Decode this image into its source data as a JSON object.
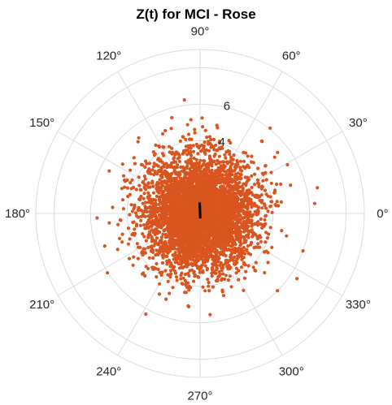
{
  "chart_data": {
    "type": "scatter",
    "projection": "polar",
    "title": "Z(t) for MCI - Rose",
    "angle_ticks": [
      "0°",
      "30°",
      "60°",
      "90°",
      "120°",
      "150°",
      "180°",
      "210°",
      "240°",
      "270°",
      "300°",
      "330°"
    ],
    "angle_tick_values_deg": [
      0,
      30,
      60,
      90,
      120,
      150,
      180,
      210,
      240,
      270,
      300,
      330
    ],
    "radial_ticks": [
      4,
      6
    ],
    "radial_tick_labels": [
      "4",
      "6"
    ],
    "rlim": [
      0,
      9
    ],
    "grid_rings": [
      2,
      4,
      6,
      8,
      9
    ],
    "grid": true,
    "point_color": "#d9541e",
    "mean_vector_color": "#000000",
    "series": [
      {
        "points": [
          {
            "theta_deg": 5,
            "r": 6.3
          },
          {
            "theta_deg": 340,
            "r": 6.0
          },
          {
            "theta_deg": 326,
            "r": 6.4
          },
          {
            "theta_deg": 315,
            "r": 6.0
          },
          {
            "theta_deg": 30,
            "r": 4.5
          },
          {
            "theta_deg": 20,
            "r": 4.7
          },
          {
            "theta_deg": 176,
            "r": 4.8
          },
          {
            "theta_deg": 186,
            "r": 5.0
          },
          {
            "theta_deg": 170,
            "r": 4.3
          },
          {
            "theta_deg": 195,
            "r": 4.4
          },
          {
            "theta_deg": 85,
            "r": 4.2
          },
          {
            "theta_deg": 75,
            "r": 4.1
          },
          {
            "theta_deg": 260,
            "r": 4.4
          },
          {
            "theta_deg": 280,
            "r": 4.1
          },
          {
            "theta_deg": 230,
            "r": 4.0
          },
          {
            "theta_deg": 300,
            "r": 4.2
          },
          {
            "theta_deg": 140,
            "r": 3.6
          },
          {
            "theta_deg": 60,
            "r": 3.7
          },
          {
            "theta_deg": 160,
            "r": 4.0
          },
          {
            "theta_deg": 200,
            "r": 4.1
          }
        ]
      }
    ],
    "mean_vector": {
      "theta_deg": 92,
      "r": 0.6
    }
  }
}
